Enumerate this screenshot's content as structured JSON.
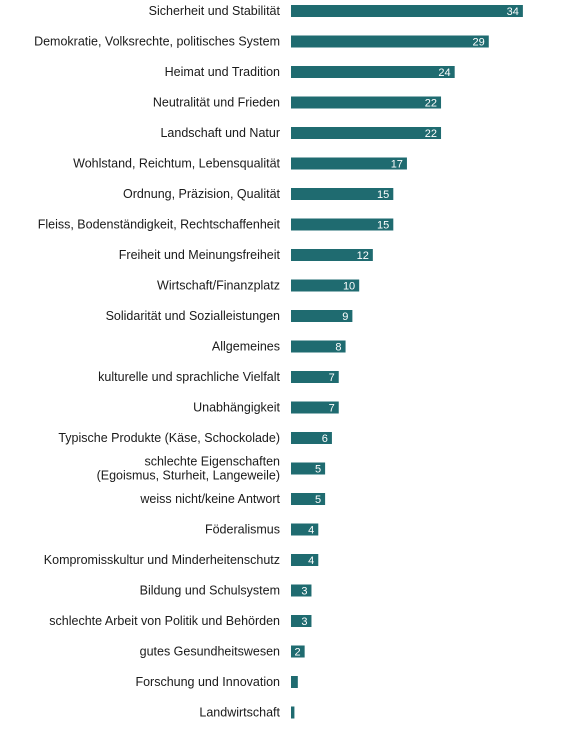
{
  "colors": {
    "bar": "#1f6b70",
    "text": "#1a1a1a",
    "value_text": "#ffffff",
    "background": "#ffffff"
  },
  "chart_data": {
    "type": "bar",
    "orientation": "horizontal",
    "title": "",
    "xlabel": "",
    "ylabel": "",
    "grid": false,
    "legend": "none",
    "xlim": [
      0,
      34
    ],
    "categories": [
      "Sicherheit und Stabilität",
      "Demokratie, Volksrechte, politisches System",
      "Heimat und Tradition",
      "Neutralität und Frieden",
      "Landschaft und Natur",
      "Wohlstand, Reichtum, Lebensqualität",
      "Ordnung, Präzision, Qualität",
      "Fleiss, Bodenständigkeit, Rechtschaffenheit",
      "Freiheit und Meinungsfreiheit",
      "Wirtschaft/Finanzplatz",
      "Solidarität und Sozialleistungen",
      "Allgemeines",
      "kulturelle und sprachliche Vielfalt",
      "Unabhängigkeit",
      "Typische Produkte (Käse, Schockolade)",
      "schlechte Eigenschaften\n(Egoismus, Sturheit, Langeweile)",
      "weiss nicht/keine Antwort",
      "Föderalismus",
      "Kompromisskultur und Minderheitenschutz",
      "Bildung und Schulsystem",
      "schlechte Arbeit von Politik und Behörden",
      "gutes Gesundheitswesen",
      "Forschung und Innovation",
      "Landwirtschaft"
    ],
    "values": [
      34,
      29,
      24,
      22,
      22,
      17,
      15,
      15,
      12,
      10,
      9,
      8,
      7,
      7,
      6,
      5,
      5,
      4,
      4,
      3,
      3,
      2,
      1,
      0.5
    ],
    "value_labels": [
      "34",
      "29",
      "24",
      "22",
      "22",
      "17",
      "15",
      "15",
      "12",
      "10",
      "9",
      "8",
      "7",
      "7",
      "6",
      "5",
      "5",
      "4",
      "4",
      "3",
      "3",
      "2",
      "",
      ""
    ]
  }
}
